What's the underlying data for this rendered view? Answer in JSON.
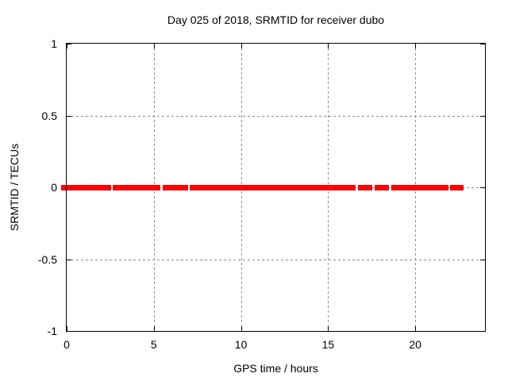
{
  "chart_data": {
    "type": "line",
    "title": "Day 025 of 2018, SRMTID for receiver dubo",
    "xlabel": "GPS time / hours",
    "ylabel": "SRMTID / TECUs",
    "xlim": [
      0,
      24
    ],
    "ylim": [
      -1,
      1
    ],
    "xticks": [
      0,
      5,
      10,
      15,
      20
    ],
    "xtick_labels": [
      "0",
      "5",
      "10",
      "15",
      "20"
    ],
    "yticks": [
      1,
      0.5,
      0,
      -0.5,
      -1
    ],
    "ytick_labels": [
      "1",
      "0.5",
      "0",
      "-0.5",
      "-1"
    ],
    "grid": true,
    "legend": "none",
    "series": [
      {
        "name": "SRMTID",
        "color": "#ff0000",
        "y_value": 0,
        "line_width": 7,
        "segments_hours": [
          [
            -0.32,
            2.56
          ],
          [
            2.65,
            5.37
          ],
          [
            5.49,
            6.97
          ],
          [
            7.08,
            16.6
          ],
          [
            16.7,
            17.54
          ],
          [
            17.65,
            18.45
          ],
          [
            18.61,
            21.9
          ],
          [
            22.01,
            22.77
          ]
        ]
      }
    ]
  },
  "colors": {
    "line": "#ff0000",
    "grid": "#8c8c8c",
    "frame": "#000000",
    "text": "#000000",
    "background": "#ffffff"
  }
}
